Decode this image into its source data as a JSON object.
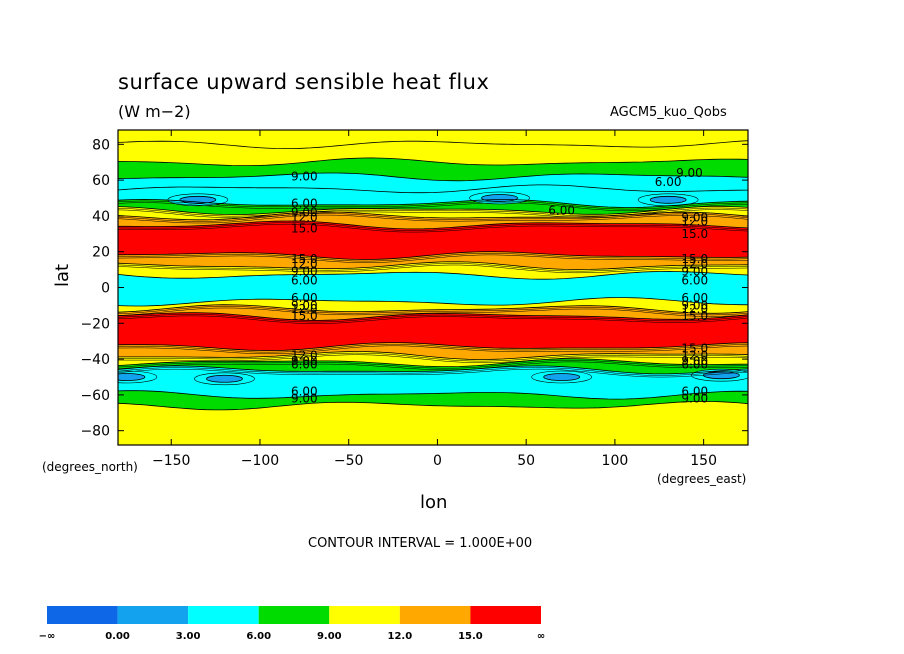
{
  "chart_data": {
    "type": "contour",
    "title": "surface upward sensible heat flux",
    "units": "(W m−2)",
    "model": "AGCM5_kuo_Qobs",
    "xlabel": "lon",
    "ylabel": "lat",
    "x_unit": "(degrees_east)",
    "y_unit": "(degrees_north)",
    "xlim": [
      -180,
      175
    ],
    "ylim": [
      -88,
      88
    ],
    "x_ticks": [
      -150,
      -100,
      -50,
      0,
      50,
      100,
      150
    ],
    "y_ticks": [
      80,
      60,
      40,
      20,
      0,
      -20,
      -40,
      -60,
      -80
    ],
    "x_tick_labels": [
      "−150",
      "−100",
      "−50",
      "0",
      "50",
      "100",
      "150"
    ],
    "y_tick_labels": [
      "80",
      "60",
      "40",
      "20",
      "0",
      "−20",
      "−40",
      "−60",
      "−80"
    ],
    "contour_interval": "CONTOUR INTERVAL = 1.000E+00",
    "levels": [
      "−∞",
      "0.00",
      "3.00",
      "6.00",
      "9.00",
      "12.0",
      "15.0",
      "∞"
    ],
    "colors": [
      "#0d67e6",
      "#13a2ee",
      "#00ffff",
      "#00dc00",
      "#ffff00",
      "#ffa800",
      "#ff0000"
    ],
    "zonal_bands": [
      {
        "lat": [
          80,
          88
        ],
        "value": 10.5
      },
      {
        "lat": [
          70,
          80
        ],
        "value": 10
      },
      {
        "lat": [
          62,
          70
        ],
        "value": 7
      },
      {
        "lat": [
          55,
          62
        ],
        "value": 5
      },
      {
        "lat": [
          47,
          55
        ],
        "value": 4
      },
      {
        "lat": [
          43,
          47
        ],
        "value": 7
      },
      {
        "lat": [
          40,
          43
        ],
        "value": 11
      },
      {
        "lat": [
          35,
          40
        ],
        "value": 13.5
      },
      {
        "lat": [
          18,
          35
        ],
        "value": 17
      },
      {
        "lat": [
          12,
          18
        ],
        "value": 13.5
      },
      {
        "lat": [
          7,
          12
        ],
        "value": 10
      },
      {
        "lat": [
          -8,
          7
        ],
        "value": 5
      },
      {
        "lat": [
          -12,
          -8
        ],
        "value": 10
      },
      {
        "lat": [
          -16,
          -12
        ],
        "value": 13.5
      },
      {
        "lat": [
          -33,
          -16
        ],
        "value": 17
      },
      {
        "lat": [
          -38,
          -33
        ],
        "value": 13.5
      },
      {
        "lat": [
          -42,
          -38
        ],
        "value": 11
      },
      {
        "lat": [
          -46,
          -42
        ],
        "value": 7
      },
      {
        "lat": [
          -60,
          -46
        ],
        "value": 4.5
      },
      {
        "lat": [
          -66,
          -60
        ],
        "value": 7
      },
      {
        "lat": [
          -88,
          -66
        ],
        "value": 10.5
      }
    ],
    "minima": [
      {
        "lon": -135,
        "lat": 49,
        "value": 2
      },
      {
        "lon": 35,
        "lat": 50,
        "value": 2
      },
      {
        "lon": 130,
        "lat": 49,
        "value": 2
      },
      {
        "lon": -175,
        "lat": -50,
        "value": 2
      },
      {
        "lon": -120,
        "lat": -51,
        "value": 2
      },
      {
        "lon": 70,
        "lat": -50,
        "value": 2
      },
      {
        "lon": 160,
        "lat": -49,
        "value": 2
      }
    ],
    "contour_labels": [
      {
        "text": "9.00",
        "lon": -75,
        "lat": 62
      },
      {
        "text": "9.00",
        "lon": 142,
        "lat": 64
      },
      {
        "text": "6.00",
        "lon": 130,
        "lat": 59
      },
      {
        "text": "6.00",
        "lon": -75,
        "lat": 47
      },
      {
        "text": "6.00",
        "lon": 70,
        "lat": 43
      },
      {
        "text": "9.00",
        "lon": -75,
        "lat": 42
      },
      {
        "text": "12.0",
        "lon": -75,
        "lat": 39
      },
      {
        "text": "15.0",
        "lon": -75,
        "lat": 33
      },
      {
        "text": "9.00",
        "lon": 145,
        "lat": 39
      },
      {
        "text": "12.0",
        "lon": 145,
        "lat": 37
      },
      {
        "text": "15.0",
        "lon": 145,
        "lat": 30
      },
      {
        "text": "15.0",
        "lon": -75,
        "lat": 16
      },
      {
        "text": "12.0",
        "lon": -75,
        "lat": 13
      },
      {
        "text": "9.00",
        "lon": -75,
        "lat": 9
      },
      {
        "text": "6.00",
        "lon": -75,
        "lat": 4
      },
      {
        "text": "15.0",
        "lon": 145,
        "lat": 16
      },
      {
        "text": "12.0",
        "lon": 145,
        "lat": 13
      },
      {
        "text": "9.00",
        "lon": 145,
        "lat": 9
      },
      {
        "text": "6.00",
        "lon": 145,
        "lat": 4
      },
      {
        "text": "6.00",
        "lon": -75,
        "lat": -6
      },
      {
        "text": "9.00",
        "lon": -75,
        "lat": -10
      },
      {
        "text": "12.0",
        "lon": -75,
        "lat": -12
      },
      {
        "text": "15.0",
        "lon": -75,
        "lat": -16
      },
      {
        "text": "6.00",
        "lon": 145,
        "lat": -6
      },
      {
        "text": "9.00",
        "lon": 145,
        "lat": -10
      },
      {
        "text": "12.0",
        "lon": 145,
        "lat": -12
      },
      {
        "text": "15.0",
        "lon": 145,
        "lat": -16
      },
      {
        "text": "15.0",
        "lon": 145,
        "lat": -34
      },
      {
        "text": "12.0",
        "lon": 145,
        "lat": -38
      },
      {
        "text": "9.00",
        "lon": 145,
        "lat": -41
      },
      {
        "text": "6.00",
        "lon": 145,
        "lat": -43
      },
      {
        "text": "12.0",
        "lon": -75,
        "lat": -38
      },
      {
        "text": "9.00",
        "lon": -75,
        "lat": -41
      },
      {
        "text": "6.00",
        "lon": -75,
        "lat": -43
      },
      {
        "text": "6.00",
        "lon": -75,
        "lat": -58
      },
      {
        "text": "9.00",
        "lon": -75,
        "lat": -62
      },
      {
        "text": "6.00",
        "lon": 145,
        "lat": -58
      },
      {
        "text": "9.00",
        "lon": 145,
        "lat": -62
      }
    ]
  }
}
